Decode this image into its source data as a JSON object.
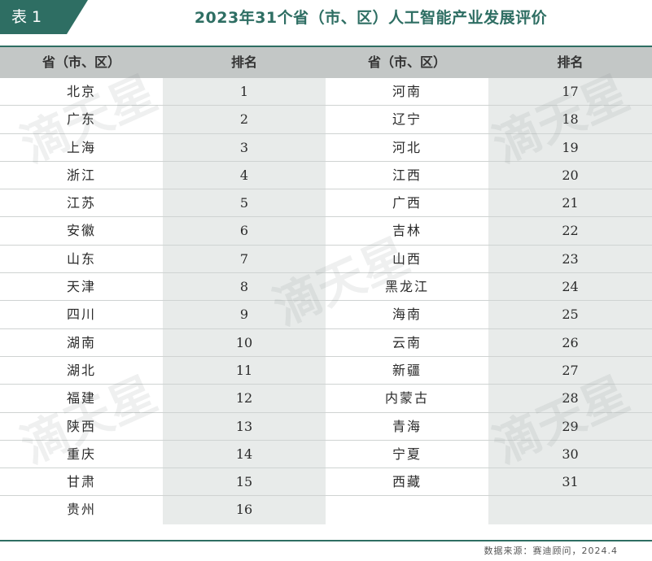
{
  "header": {
    "tag": "表 1",
    "title": "2023年31个省（市、区）人工智能产业发展评价"
  },
  "table": {
    "headers": [
      "省（市、区）",
      "排名",
      "省（市、区）",
      "排名"
    ],
    "left": [
      {
        "name": "北京",
        "rank": "1"
      },
      {
        "name": "广东",
        "rank": "2"
      },
      {
        "name": "上海",
        "rank": "3"
      },
      {
        "name": "浙江",
        "rank": "4"
      },
      {
        "name": "江苏",
        "rank": "5"
      },
      {
        "name": "安徽",
        "rank": "6"
      },
      {
        "name": "山东",
        "rank": "7"
      },
      {
        "name": "天津",
        "rank": "8"
      },
      {
        "name": "四川",
        "rank": "9"
      },
      {
        "name": "湖南",
        "rank": "10"
      },
      {
        "name": "湖北",
        "rank": "11"
      },
      {
        "name": "福建",
        "rank": "12"
      },
      {
        "name": "陕西",
        "rank": "13"
      },
      {
        "name": "重庆",
        "rank": "14"
      },
      {
        "name": "甘肃",
        "rank": "15"
      },
      {
        "name": "贵州",
        "rank": "16"
      }
    ],
    "right": [
      {
        "name": "河南",
        "rank": "17"
      },
      {
        "name": "辽宁",
        "rank": "18"
      },
      {
        "name": "河北",
        "rank": "19"
      },
      {
        "name": "江西",
        "rank": "20"
      },
      {
        "name": "广西",
        "rank": "21"
      },
      {
        "name": "吉林",
        "rank": "22"
      },
      {
        "name": "山西",
        "rank": "23"
      },
      {
        "name": "黑龙江",
        "rank": "24"
      },
      {
        "name": "海南",
        "rank": "25"
      },
      {
        "name": "云南",
        "rank": "26"
      },
      {
        "name": "新疆",
        "rank": "27"
      },
      {
        "name": "内蒙古",
        "rank": "28"
      },
      {
        "name": "青海",
        "rank": "29"
      },
      {
        "name": "宁夏",
        "rank": "30"
      },
      {
        "name": "西藏",
        "rank": "31"
      },
      {
        "name": "",
        "rank": ""
      }
    ]
  },
  "source": "数据来源：赛迪顾问，2024.4",
  "watermark": "滴天星",
  "colors": {
    "accent": "#2e6e63",
    "header_bg": "#c3c7c6",
    "shade": "#e8ebea"
  }
}
